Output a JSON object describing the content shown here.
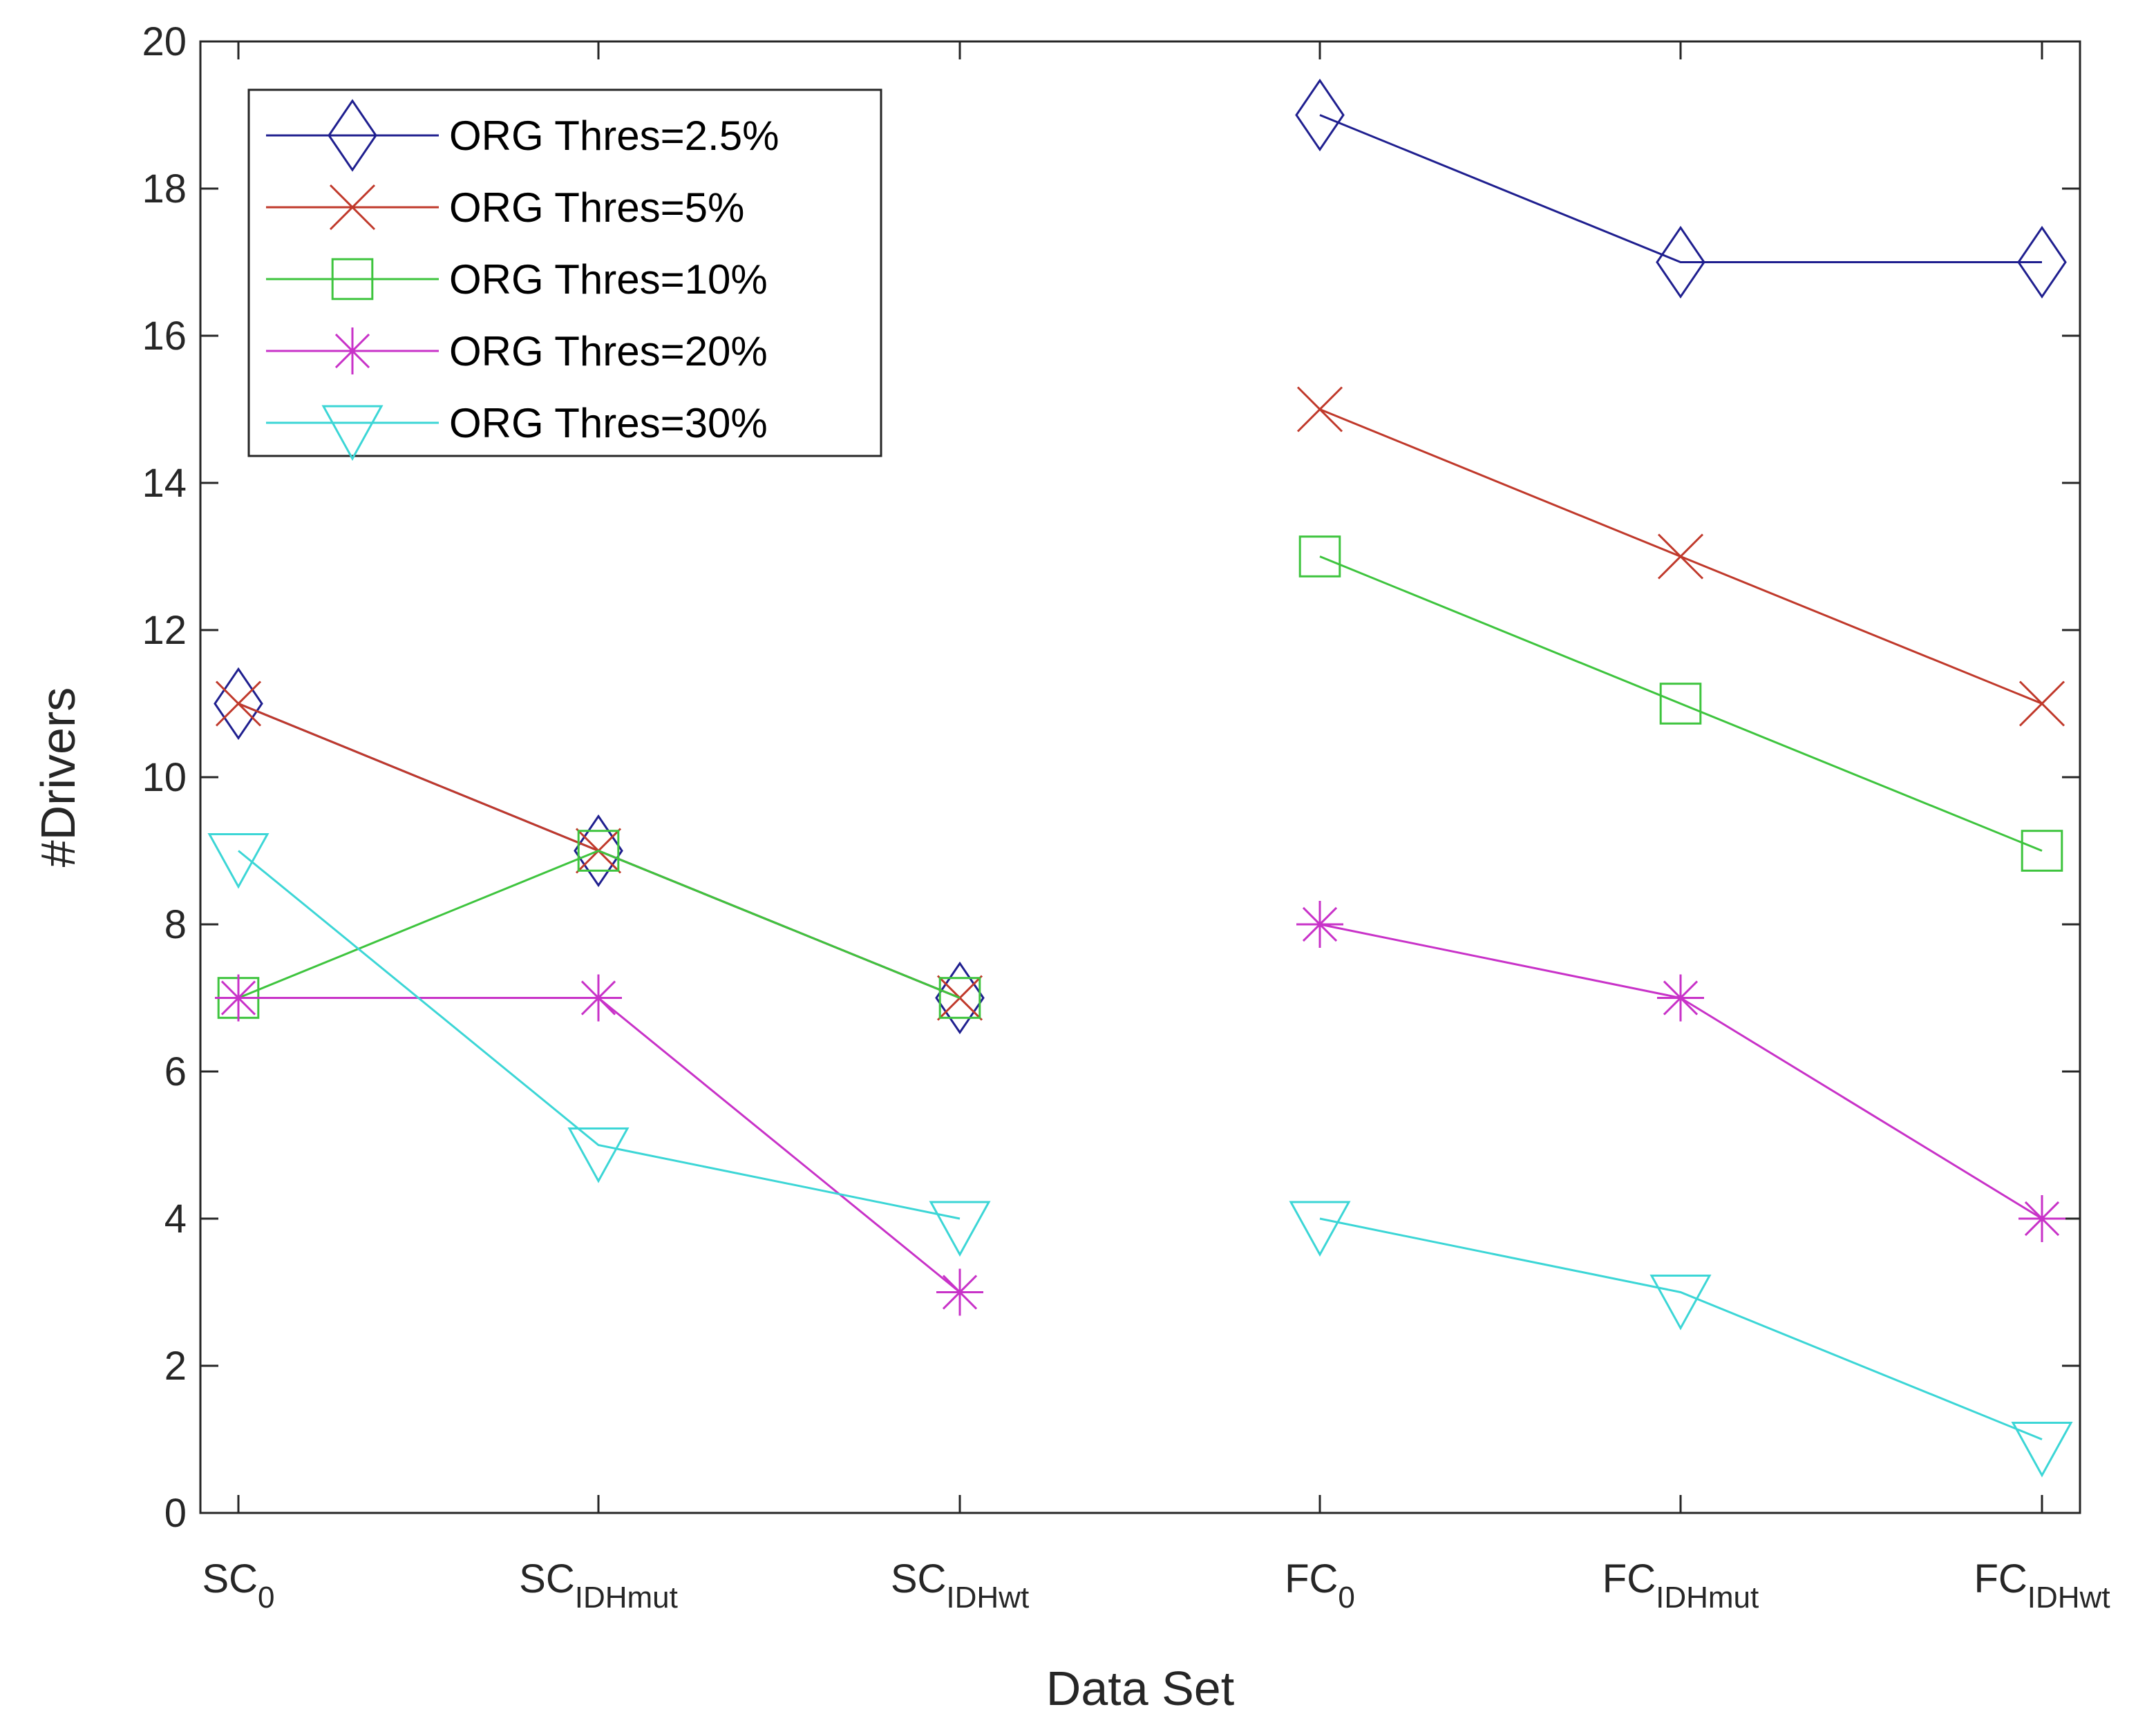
{
  "chart_data": {
    "type": "line",
    "title": "",
    "xlabel": "Data Set",
    "ylabel": "#Drivers",
    "ylim": [
      0,
      20
    ],
    "yticks": [
      0,
      2,
      4,
      6,
      8,
      10,
      12,
      14,
      16,
      18,
      20
    ],
    "categories": [
      {
        "main": "SC",
        "sub": "0"
      },
      {
        "main": "SC",
        "sub": "IDHmut"
      },
      {
        "main": "SC",
        "sub": "IDHwt"
      },
      {
        "main": "FC",
        "sub": "0"
      },
      {
        "main": "FC",
        "sub": "IDHmut"
      },
      {
        "main": "FC",
        "sub": "IDHwt"
      }
    ],
    "legend_position": "top-left",
    "series": [
      {
        "name": "ORG Thres=2.5%",
        "color": "#1f1f8f",
        "marker": "diamond",
        "segments": [
          {
            "start": 0,
            "values": [
              11,
              9,
              7
            ]
          },
          {
            "start": 3,
            "values": [
              19,
              17,
              17
            ]
          }
        ]
      },
      {
        "name": "ORG Thres=5%",
        "color": "#c0392b",
        "marker": "x",
        "segments": [
          {
            "start": 0,
            "values": [
              11,
              9,
              7
            ]
          },
          {
            "start": 3,
            "values": [
              15,
              13,
              11
            ]
          }
        ]
      },
      {
        "name": "ORG Thres=10%",
        "color": "#3ec43e",
        "marker": "square",
        "segments": [
          {
            "start": 0,
            "values": [
              7,
              9,
              7
            ]
          },
          {
            "start": 3,
            "values": [
              13,
              11,
              9
            ]
          }
        ]
      },
      {
        "name": "ORG Thres=20%",
        "color": "#c832c8",
        "marker": "asterisk",
        "segments": [
          {
            "start": 0,
            "values": [
              7,
              7,
              3
            ]
          },
          {
            "start": 3,
            "values": [
              8,
              7,
              4
            ]
          }
        ]
      },
      {
        "name": "ORG Thres=30%",
        "color": "#3cd6d6",
        "marker": "triangle-down",
        "segments": [
          {
            "start": 0,
            "values": [
              9,
              5,
              4
            ]
          },
          {
            "start": 3,
            "values": [
              4,
              3,
              1
            ]
          }
        ]
      }
    ]
  }
}
